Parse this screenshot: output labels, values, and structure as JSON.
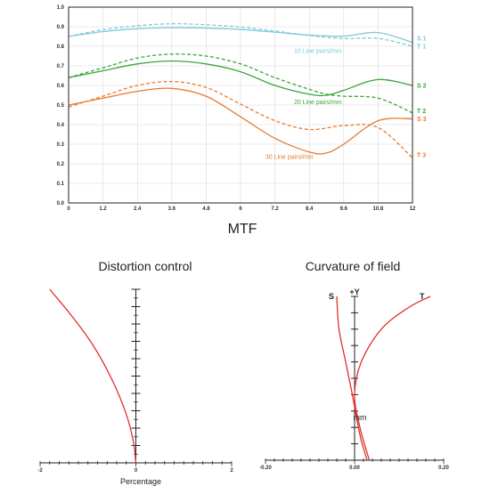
{
  "colors": {
    "cyan": "#7fc8dd",
    "green": "#3aa53a",
    "orange": "#e87a2c",
    "red": "#e0302a",
    "axis": "#222222",
    "grid": "#d8d8d8"
  },
  "chart_data": [
    {
      "type": "line",
      "title": "MTF",
      "xlim": [
        0,
        12
      ],
      "ylim": [
        0,
        1.0
      ],
      "x_ticks": [
        "0",
        "1.2",
        "2.4",
        "3.6",
        "4.8",
        "6",
        "7.2",
        "8.4",
        "9.6",
        "10.8",
        "12"
      ],
      "y_ticks": [
        "0.0",
        "0.1",
        "0.2",
        "0.3",
        "0.4",
        "0.5",
        "0.6",
        "0.7",
        "0.8",
        "0.9",
        "1.0"
      ],
      "grid": true,
      "series": [
        {
          "name": "S 1",
          "group": "cyan",
          "dash": false,
          "x": [
            0,
            1.2,
            2.4,
            3.6,
            4.8,
            6,
            7.2,
            8.4,
            9.6,
            10.8,
            12
          ],
          "y": [
            0.85,
            0.875,
            0.89,
            0.895,
            0.893,
            0.886,
            0.872,
            0.857,
            0.852,
            0.87,
            0.82
          ]
        },
        {
          "name": "T 1",
          "group": "cyan",
          "dash": true,
          "x": [
            0,
            1.2,
            2.4,
            3.6,
            4.8,
            6,
            7.2,
            8.4,
            9.6,
            10.8,
            12
          ],
          "y": [
            0.85,
            0.885,
            0.905,
            0.915,
            0.91,
            0.898,
            0.878,
            0.855,
            0.84,
            0.84,
            0.8
          ]
        },
        {
          "name": "S 2",
          "group": "green",
          "dash": false,
          "x": [
            0,
            1.2,
            2.4,
            3.6,
            4.8,
            6,
            7.2,
            8.4,
            9.0,
            9.6,
            10.8,
            12
          ],
          "y": [
            0.64,
            0.675,
            0.71,
            0.725,
            0.71,
            0.67,
            0.6,
            0.555,
            0.55,
            0.575,
            0.63,
            0.6
          ]
        },
        {
          "name": "T 2",
          "group": "green",
          "dash": true,
          "x": [
            0,
            1.2,
            2.4,
            3.6,
            4.8,
            6,
            7.2,
            8.4,
            9.0,
            9.6,
            10.8,
            12
          ],
          "y": [
            0.64,
            0.69,
            0.74,
            0.76,
            0.75,
            0.71,
            0.64,
            0.58,
            0.555,
            0.545,
            0.535,
            0.46
          ]
        },
        {
          "name": "S 3",
          "group": "orange",
          "dash": false,
          "x": [
            0,
            1.2,
            2.4,
            3.6,
            4.8,
            6,
            7.2,
            8.4,
            9.0,
            9.6,
            10.8,
            12
          ],
          "y": [
            0.5,
            0.535,
            0.57,
            0.585,
            0.545,
            0.44,
            0.33,
            0.26,
            0.255,
            0.3,
            0.42,
            0.43
          ]
        },
        {
          "name": "T 3",
          "group": "orange",
          "dash": true,
          "x": [
            0,
            1.2,
            2.4,
            3.6,
            4.8,
            6,
            7.2,
            8.4,
            9.6,
            10.8,
            12
          ],
          "y": [
            0.49,
            0.545,
            0.6,
            0.62,
            0.59,
            0.505,
            0.42,
            0.375,
            0.395,
            0.385,
            0.23
          ]
        }
      ],
      "end_labels": [
        {
          "text": "S 1",
          "y": 0.84,
          "group": "cyan"
        },
        {
          "text": "T 1",
          "y": 0.8,
          "group": "cyan"
        },
        {
          "text": "S 2",
          "y": 0.6,
          "group": "green"
        },
        {
          "text": "T 2",
          "y": 0.47,
          "group": "green"
        },
        {
          "text": "S 3",
          "y": 0.43,
          "group": "orange"
        },
        {
          "text": "T 3",
          "y": 0.245,
          "group": "orange"
        }
      ],
      "annotations": [
        {
          "text": "10 Line pairs/mm",
          "x": 8.7,
          "y": 0.765,
          "group": "cyan"
        },
        {
          "text": "20 Line pairs/mm",
          "x": 8.7,
          "y": 0.505,
          "group": "green"
        },
        {
          "text": "30 Line pairs/mm",
          "x": 7.7,
          "y": 0.225,
          "group": "orange"
        }
      ]
    },
    {
      "type": "line",
      "title": "Distortion control",
      "xlabel": "Percentage",
      "xlim": [
        -2,
        2
      ],
      "x_ticks": [
        "-2",
        "0",
        "2"
      ],
      "series": [
        {
          "name": "",
          "x": [
            -1.8,
            -1.35,
            -0.9,
            -0.5,
            -0.2,
            -0.05,
            0
          ],
          "y": [
            1.0,
            0.85,
            0.68,
            0.48,
            0.28,
            0.12,
            0
          ]
        }
      ]
    },
    {
      "type": "line",
      "title": "Curvature of field",
      "xlabel": "mm",
      "y_axis_label": "+Y",
      "xlim": [
        -0.2,
        0.2
      ],
      "x_ticks": [
        "-0.20",
        "0.00",
        "0.20"
      ],
      "series": [
        {
          "name": "S",
          "x": [
            -0.04,
            -0.035,
            -0.02,
            -0.005,
            0.005,
            0.015,
            0.028
          ],
          "y": [
            1.0,
            0.8,
            0.6,
            0.4,
            0.25,
            0.12,
            0
          ]
        },
        {
          "name": "T",
          "x": [
            0.17,
            0.12,
            0.06,
            0.015,
            0.0,
            0.012,
            0.033
          ],
          "y": [
            1.0,
            0.93,
            0.8,
            0.6,
            0.4,
            0.2,
            0
          ]
        }
      ]
    }
  ]
}
